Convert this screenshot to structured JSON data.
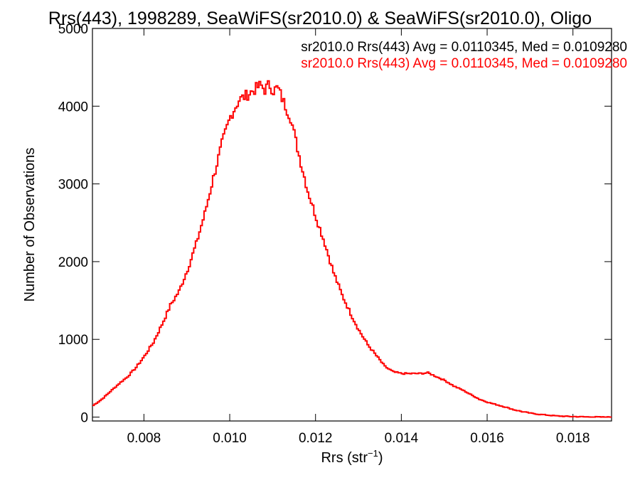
{
  "chart_data": {
    "type": "line",
    "title": "Rrs(443), 1998289, SeaWiFS(sr2010.0) & SeaWiFS(sr2010.0), Oligo",
    "xlabel": "Rrs (str",
    "xlabel_sup": "−1",
    "xlabel_close": ")",
    "ylabel": "Number of Observations",
    "xlim": [
      0.0068,
      0.0189
    ],
    "ylim": [
      -50,
      5000
    ],
    "x_ticks": [
      0.008,
      0.01,
      0.012,
      0.014,
      0.016,
      0.018
    ],
    "x_tick_labels": [
      "0.008",
      "0.010",
      "0.012",
      "0.014",
      "0.016",
      "0.018"
    ],
    "y_ticks": [
      0,
      1000,
      2000,
      3000,
      4000,
      5000
    ],
    "y_tick_labels": [
      "0",
      "1000",
      "2000",
      "3000",
      "4000",
      "5000"
    ],
    "annotations": [
      {
        "text": "sr2010.0 Rrs(443) Avg = 0.0110345, Med = 0.0109280",
        "color": "#000000"
      },
      {
        "text": "sr2010.0 Rrs(443) Avg = 0.0110345, Med = 0.0109280",
        "color": "#ff0000"
      }
    ],
    "series": [
      {
        "color": "#ff0000",
        "x": [
          0.0068,
          0.007,
          0.0072,
          0.0074,
          0.0076,
          0.0078,
          0.008,
          0.0082,
          0.0084,
          0.0086,
          0.0088,
          0.009,
          0.0092,
          0.0094,
          0.0096,
          0.0098,
          0.01,
          0.0102,
          0.0104,
          0.0106,
          0.0107,
          0.0108,
          0.0109,
          0.011,
          0.0111,
          0.0112,
          0.0114,
          0.0116,
          0.0118,
          0.012,
          0.0122,
          0.0124,
          0.0126,
          0.0128,
          0.013,
          0.0132,
          0.0134,
          0.0136,
          0.0138,
          0.014,
          0.0142,
          0.0144,
          0.0146,
          0.0148,
          0.015,
          0.0152,
          0.0154,
          0.0156,
          0.0158,
          0.016,
          0.0162,
          0.0164,
          0.0166,
          0.0168,
          0.017,
          0.0172,
          0.0174,
          0.0176,
          0.0178,
          0.018,
          0.0182,
          0.0184,
          0.0186,
          0.0189
        ],
        "y": [
          150,
          230,
          330,
          430,
          520,
          640,
          790,
          960,
          1190,
          1440,
          1620,
          1900,
          2230,
          2620,
          3080,
          3520,
          3870,
          4080,
          4150,
          4230,
          4270,
          4210,
          4280,
          4200,
          4240,
          4100,
          3850,
          3360,
          2910,
          2560,
          2230,
          1860,
          1570,
          1330,
          1110,
          930,
          790,
          650,
          580,
          560,
          560,
          560,
          570,
          520,
          470,
          400,
          350,
          290,
          230,
          190,
          160,
          130,
          95,
          70,
          50,
          35,
          25,
          15,
          10,
          6,
          4,
          2,
          1,
          0
        ]
      }
    ]
  }
}
